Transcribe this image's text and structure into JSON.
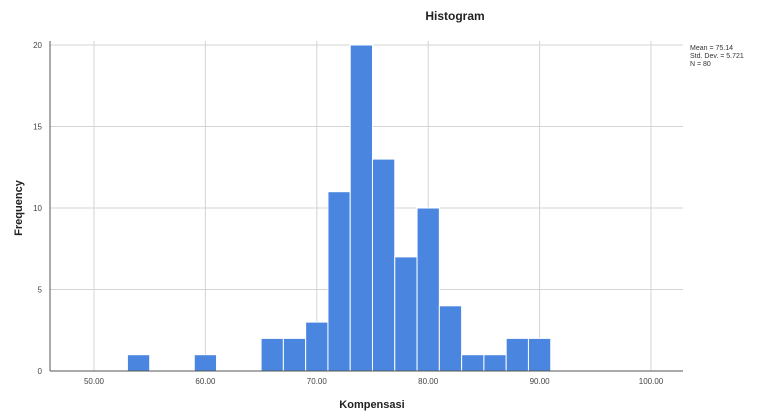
{
  "chart_data": {
    "type": "bar",
    "title": "Histogram",
    "xlabel": "Kompensasi",
    "ylabel": "Frequency",
    "xlim": [
      50,
      100
    ],
    "ylim": [
      0,
      20
    ],
    "x_ticks": [
      "50.00",
      "60.00",
      "70.00",
      "80.00",
      "90.00",
      "100.00"
    ],
    "y_ticks": [
      "0",
      "5",
      "10",
      "15",
      "20"
    ],
    "bin_width": 2,
    "bins": [
      {
        "start": 53,
        "count": 1
      },
      {
        "start": 59,
        "count": 1
      },
      {
        "start": 65,
        "count": 2
      },
      {
        "start": 67,
        "count": 2
      },
      {
        "start": 69,
        "count": 3
      },
      {
        "start": 71,
        "count": 11
      },
      {
        "start": 73,
        "count": 20
      },
      {
        "start": 75,
        "count": 13
      },
      {
        "start": 77,
        "count": 7
      },
      {
        "start": 79,
        "count": 10
      },
      {
        "start": 81,
        "count": 4
      },
      {
        "start": 83,
        "count": 1
      },
      {
        "start": 85,
        "count": 1
      },
      {
        "start": 87,
        "count": 2
      },
      {
        "start": 89,
        "count": 2
      }
    ],
    "grid": true,
    "bar_color": "#4a86e0",
    "stats": {
      "mean": "Mean = 75.14",
      "std_dev": "Std. Dev. = 5.721",
      "n": "N = 80"
    }
  }
}
